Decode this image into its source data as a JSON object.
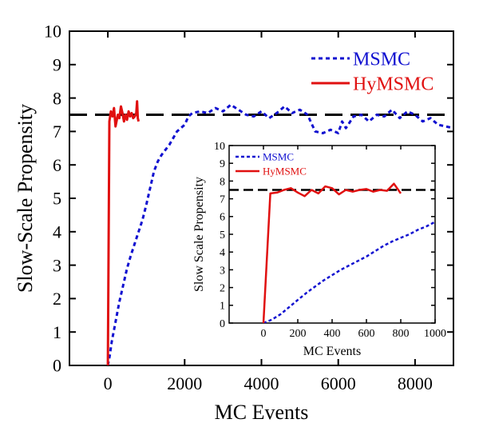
{
  "chart_data": [
    {
      "type": "line",
      "xlabel": "MC Events",
      "ylabel": "Slow-Scale Propensity",
      "xlim": [
        -1000,
        9000
      ],
      "ylim": [
        0,
        10
      ],
      "x_ticks": [
        0,
        2000,
        4000,
        6000,
        8000
      ],
      "y_ticks": [
        0,
        1,
        2,
        3,
        4,
        5,
        6,
        7,
        8,
        9,
        10
      ],
      "grid": false,
      "legend_position": "top-right",
      "reference_line": {
        "y": 7.5,
        "style": "dashed",
        "color": "#000000"
      },
      "series": [
        {
          "name": "MSMC",
          "color": "#1010d0",
          "style": "dotted",
          "points": [
            [
              0,
              0
            ],
            [
              50,
              0.3
            ],
            [
              100,
              0.7
            ],
            [
              200,
              1.3
            ],
            [
              300,
              1.9
            ],
            [
              400,
              2.4
            ],
            [
              500,
              2.9
            ],
            [
              600,
              3.3
            ],
            [
              700,
              3.65
            ],
            [
              800,
              4.0
            ],
            [
              900,
              4.35
            ],
            [
              1000,
              4.8
            ],
            [
              1100,
              5.3
            ],
            [
              1200,
              5.8
            ],
            [
              1300,
              6.1
            ],
            [
              1400,
              6.3
            ],
            [
              1600,
              6.6
            ],
            [
              1800,
              7.0
            ],
            [
              2000,
              7.2
            ],
            [
              2100,
              7.45
            ],
            [
              2200,
              7.55
            ],
            [
              2400,
              7.6
            ],
            [
              2600,
              7.55
            ],
            [
              2800,
              7.7
            ],
            [
              3000,
              7.6
            ],
            [
              3200,
              7.8
            ],
            [
              3400,
              7.65
            ],
            [
              3600,
              7.5
            ],
            [
              3800,
              7.45
            ],
            [
              4000,
              7.6
            ],
            [
              4200,
              7.4
            ],
            [
              4400,
              7.55
            ],
            [
              4600,
              7.75
            ],
            [
              4800,
              7.55
            ],
            [
              5000,
              7.65
            ],
            [
              5200,
              7.5
            ],
            [
              5400,
              7.0
            ],
            [
              5600,
              6.95
            ],
            [
              5800,
              7.05
            ],
            [
              6000,
              6.95
            ],
            [
              6100,
              7.3
            ],
            [
              6200,
              7.1
            ],
            [
              6400,
              7.45
            ],
            [
              6600,
              7.5
            ],
            [
              6800,
              7.3
            ],
            [
              7000,
              7.5
            ],
            [
              7200,
              7.45
            ],
            [
              7400,
              7.65
            ],
            [
              7600,
              7.4
            ],
            [
              7800,
              7.6
            ],
            [
              8000,
              7.5
            ],
            [
              8200,
              7.3
            ],
            [
              8400,
              7.4
            ],
            [
              8600,
              7.2
            ],
            [
              8800,
              7.15
            ],
            [
              9000,
              7.1
            ]
          ]
        },
        {
          "name": "HyMSMC",
          "color": "#e01010",
          "style": "solid",
          "points": [
            [
              0,
              0
            ],
            [
              40,
              7.3
            ],
            [
              80,
              7.6
            ],
            [
              120,
              7.45
            ],
            [
              160,
              7.7
            ],
            [
              200,
              7.15
            ],
            [
              260,
              7.5
            ],
            [
              300,
              7.4
            ],
            [
              340,
              7.75
            ],
            [
              380,
              7.55
            ],
            [
              420,
              7.3
            ],
            [
              460,
              7.5
            ],
            [
              500,
              7.35
            ],
            [
              540,
              7.6
            ],
            [
              580,
              7.45
            ],
            [
              620,
              7.55
            ],
            [
              660,
              7.4
            ],
            [
              700,
              7.45
            ],
            [
              740,
              7.55
            ],
            [
              760,
              7.9
            ],
            [
              780,
              7.4
            ],
            [
              800,
              7.3
            ]
          ]
        }
      ]
    },
    {
      "type": "line",
      "xlabel": "MC Events",
      "ylabel": "Slow Scale Propensity",
      "xlim": [
        -200,
        1000
      ],
      "ylim": [
        0,
        10
      ],
      "x_ticks": [
        0,
        200,
        400,
        600,
        800,
        1000
      ],
      "y_ticks": [
        0,
        1,
        2,
        3,
        4,
        5,
        6,
        7,
        8,
        9,
        10
      ],
      "grid": false,
      "legend_position": "top-left",
      "reference_line": {
        "y": 7.5,
        "style": "dashed",
        "color": "#000000"
      },
      "series": [
        {
          "name": "MSMC",
          "color": "#1010d0",
          "style": "dotted",
          "points": [
            [
              0,
              0
            ],
            [
              50,
              0.2
            ],
            [
              100,
              0.5
            ],
            [
              150,
              0.9
            ],
            [
              200,
              1.3
            ],
            [
              250,
              1.7
            ],
            [
              300,
              2.05
            ],
            [
              350,
              2.4
            ],
            [
              400,
              2.7
            ],
            [
              450,
              3.0
            ],
            [
              500,
              3.25
            ],
            [
              550,
              3.5
            ],
            [
              600,
              3.75
            ],
            [
              650,
              4.05
            ],
            [
              700,
              4.35
            ],
            [
              750,
              4.6
            ],
            [
              800,
              4.8
            ],
            [
              850,
              5.0
            ],
            [
              900,
              5.25
            ],
            [
              950,
              5.45
            ],
            [
              1000,
              5.7
            ]
          ]
        },
        {
          "name": "HyMSMC",
          "color": "#e01010",
          "style": "solid",
          "points": [
            [
              0,
              0
            ],
            [
              40,
              7.3
            ],
            [
              80,
              7.35
            ],
            [
              120,
              7.5
            ],
            [
              160,
              7.6
            ],
            [
              200,
              7.35
            ],
            [
              240,
              7.15
            ],
            [
              280,
              7.5
            ],
            [
              320,
              7.3
            ],
            [
              360,
              7.7
            ],
            [
              400,
              7.6
            ],
            [
              440,
              7.25
            ],
            [
              480,
              7.5
            ],
            [
              520,
              7.4
            ],
            [
              560,
              7.5
            ],
            [
              600,
              7.55
            ],
            [
              640,
              7.4
            ],
            [
              680,
              7.5
            ],
            [
              720,
              7.45
            ],
            [
              760,
              7.85
            ],
            [
              800,
              7.3
            ]
          ]
        }
      ]
    }
  ]
}
